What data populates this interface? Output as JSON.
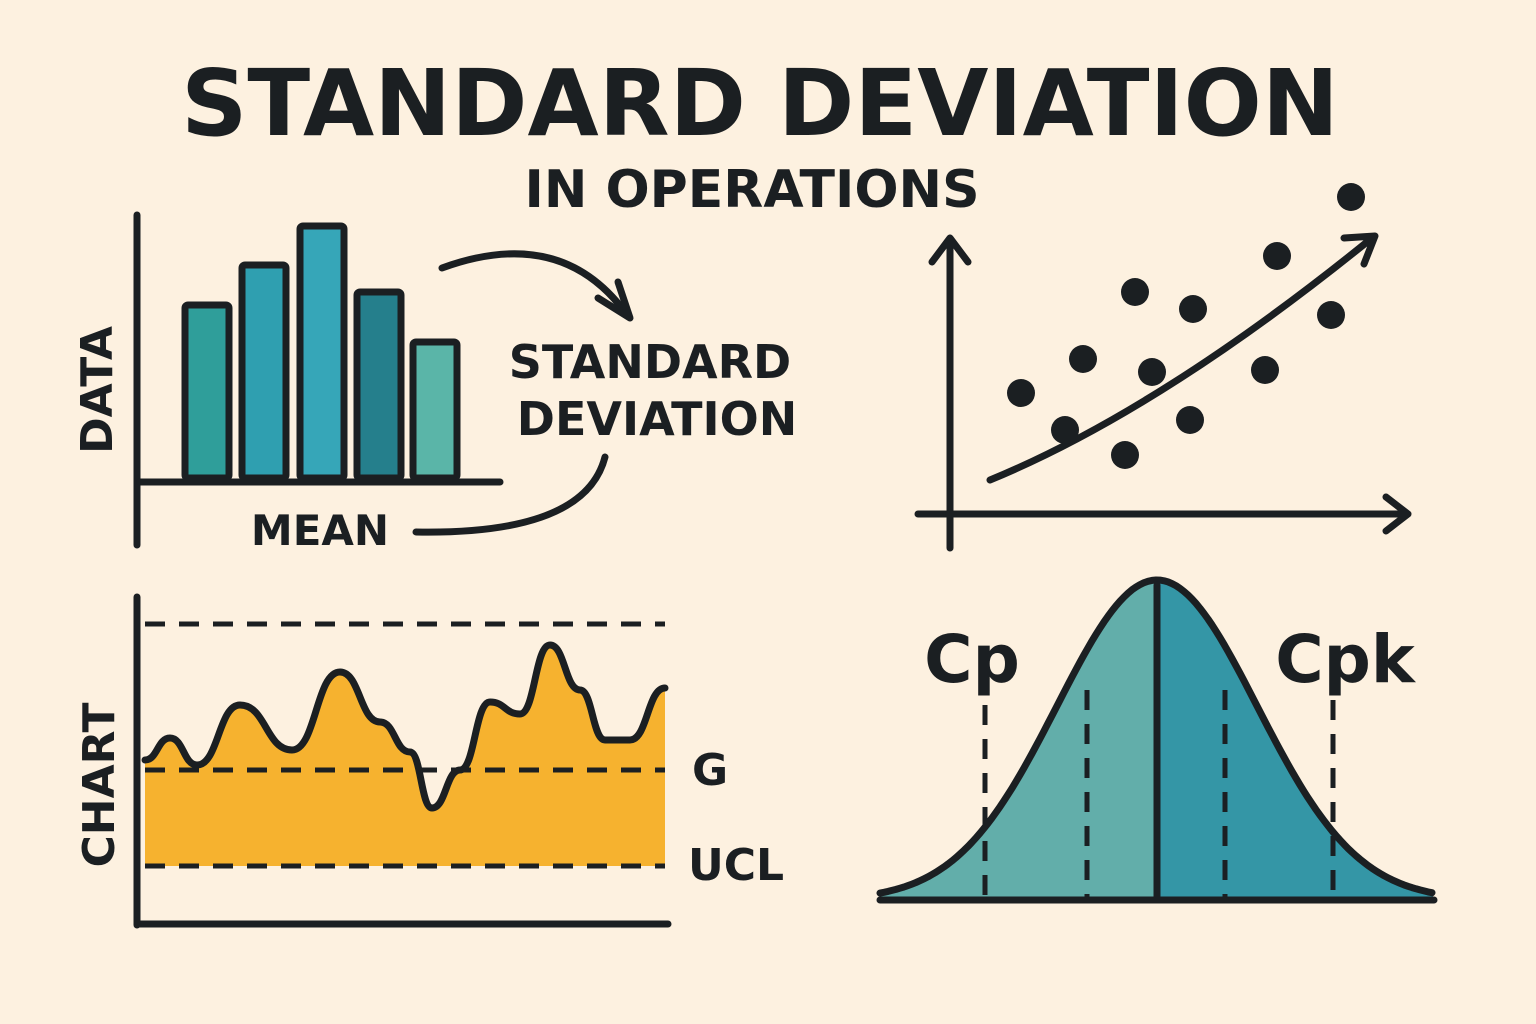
{
  "title": "STANDARD DEVIATION",
  "subtitle": "IN OPERATIONS",
  "histogram": {
    "y_label": "DATA",
    "x_label": "MEAN",
    "callout": [
      "STANDARD",
      "DEVIATION"
    ],
    "bar_colors": [
      "#2f9e9a",
      "#2f9fb0",
      "#36a6b8",
      "#257f8c",
      "#5ab5a8"
    ]
  },
  "control_chart": {
    "y_label": "CHART",
    "line_labels": [
      "G",
      "UCL"
    ],
    "fill_color": "#f6b22f"
  },
  "bell_curve": {
    "left_label": "Cp",
    "right_label": "Cpk",
    "colors": [
      "#62aeaa",
      "#3496a6"
    ]
  },
  "colors": {
    "background": "#fdf1e0",
    "ink": "#1b1f22"
  }
}
